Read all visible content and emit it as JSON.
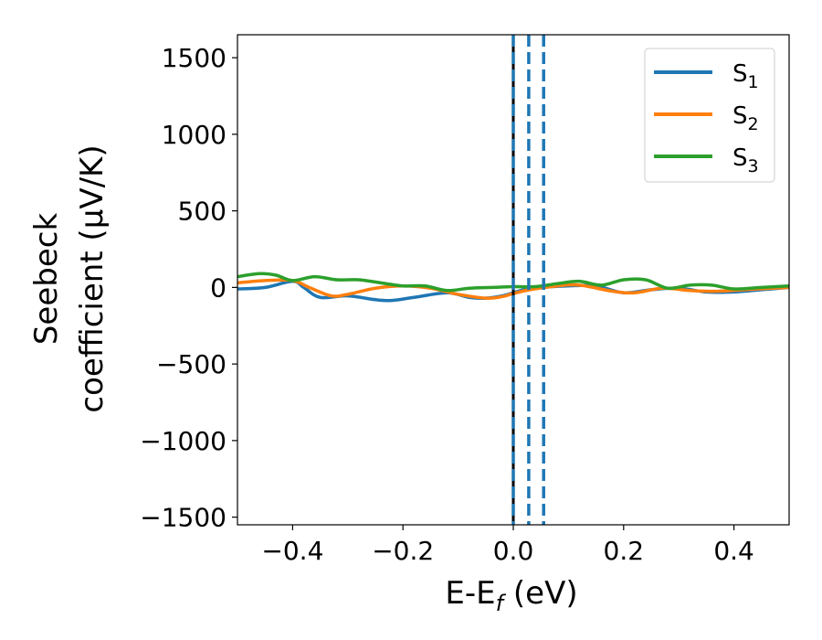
{
  "chart_data": {
    "type": "line",
    "xlabel": {
      "main": "E-E",
      "sub": "f",
      "unit": " (eV)"
    },
    "ylabel": {
      "line1": "Seebeck",
      "line2": "coefficient  (μV/K)"
    },
    "xlim": [
      -0.5,
      0.5
    ],
    "ylim": [
      -1550,
      1650
    ],
    "x_ticks": [
      -0.4,
      -0.2,
      0.0,
      0.2,
      0.4
    ],
    "x_tick_labels": [
      "−0.4",
      "−0.2",
      "0.0",
      "0.2",
      "0.4"
    ],
    "y_ticks": [
      -1500,
      -1000,
      -500,
      0,
      500,
      1000,
      1500
    ],
    "y_tick_labels": [
      "−1500",
      "−1000",
      "−500",
      "0",
      "500",
      "1000",
      "1500"
    ],
    "grid": false,
    "legend_position": "top-right",
    "series": [
      {
        "name": "S",
        "sub": "1",
        "color": "#1f77b4",
        "x": [
          -0.5,
          -0.45,
          -0.4,
          -0.38,
          -0.35,
          -0.3,
          -0.25,
          -0.22,
          -0.18,
          -0.12,
          -0.08,
          -0.05,
          -0.02,
          0.0,
          0.02,
          0.05,
          0.1,
          0.15,
          0.2,
          0.25,
          0.3,
          0.35,
          0.4,
          0.45,
          0.5
        ],
        "y": [
          -10,
          0,
          40,
          0,
          -65,
          -55,
          -80,
          -85,
          -65,
          -35,
          -65,
          -70,
          -55,
          -35,
          -15,
          0,
          10,
          10,
          -35,
          -15,
          -5,
          -30,
          -30,
          -15,
          0
        ]
      },
      {
        "name": "S",
        "sub": "2",
        "color": "#ff7f0e",
        "x": [
          -0.5,
          -0.45,
          -0.4,
          -0.37,
          -0.33,
          -0.3,
          -0.25,
          -0.2,
          -0.15,
          -0.1,
          -0.05,
          -0.02,
          0.0,
          0.03,
          0.08,
          0.12,
          0.18,
          0.22,
          0.27,
          0.32,
          0.37,
          0.42,
          0.47,
          0.5
        ],
        "y": [
          30,
          45,
          45,
          0,
          -55,
          -45,
          -5,
          10,
          -5,
          -45,
          -70,
          -60,
          -40,
          -15,
          10,
          15,
          -25,
          -35,
          -5,
          -20,
          -25,
          -15,
          -5,
          0
        ]
      },
      {
        "name": "S",
        "sub": "3",
        "color": "#2ca02c",
        "x": [
          -0.5,
          -0.46,
          -0.43,
          -0.4,
          -0.36,
          -0.32,
          -0.28,
          -0.24,
          -0.2,
          -0.16,
          -0.12,
          -0.08,
          -0.04,
          0.0,
          0.04,
          0.08,
          0.12,
          0.16,
          0.2,
          0.24,
          0.28,
          0.32,
          0.36,
          0.4,
          0.45,
          0.5
        ],
        "y": [
          70,
          90,
          80,
          45,
          70,
          50,
          50,
          30,
          10,
          10,
          -20,
          -5,
          0,
          5,
          5,
          25,
          40,
          15,
          50,
          50,
          -5,
          15,
          15,
          -10,
          0,
          10
        ]
      }
    ],
    "vlines": [
      {
        "x": 0.0,
        "color": "#000000",
        "style": "solid"
      },
      {
        "x": 0.0,
        "color": "#1f77b4",
        "style": "dashed"
      },
      {
        "x": 0.028,
        "color": "#1f77b4",
        "style": "dashed"
      },
      {
        "x": 0.055,
        "color": "#1f77b4",
        "style": "dashed"
      }
    ]
  }
}
